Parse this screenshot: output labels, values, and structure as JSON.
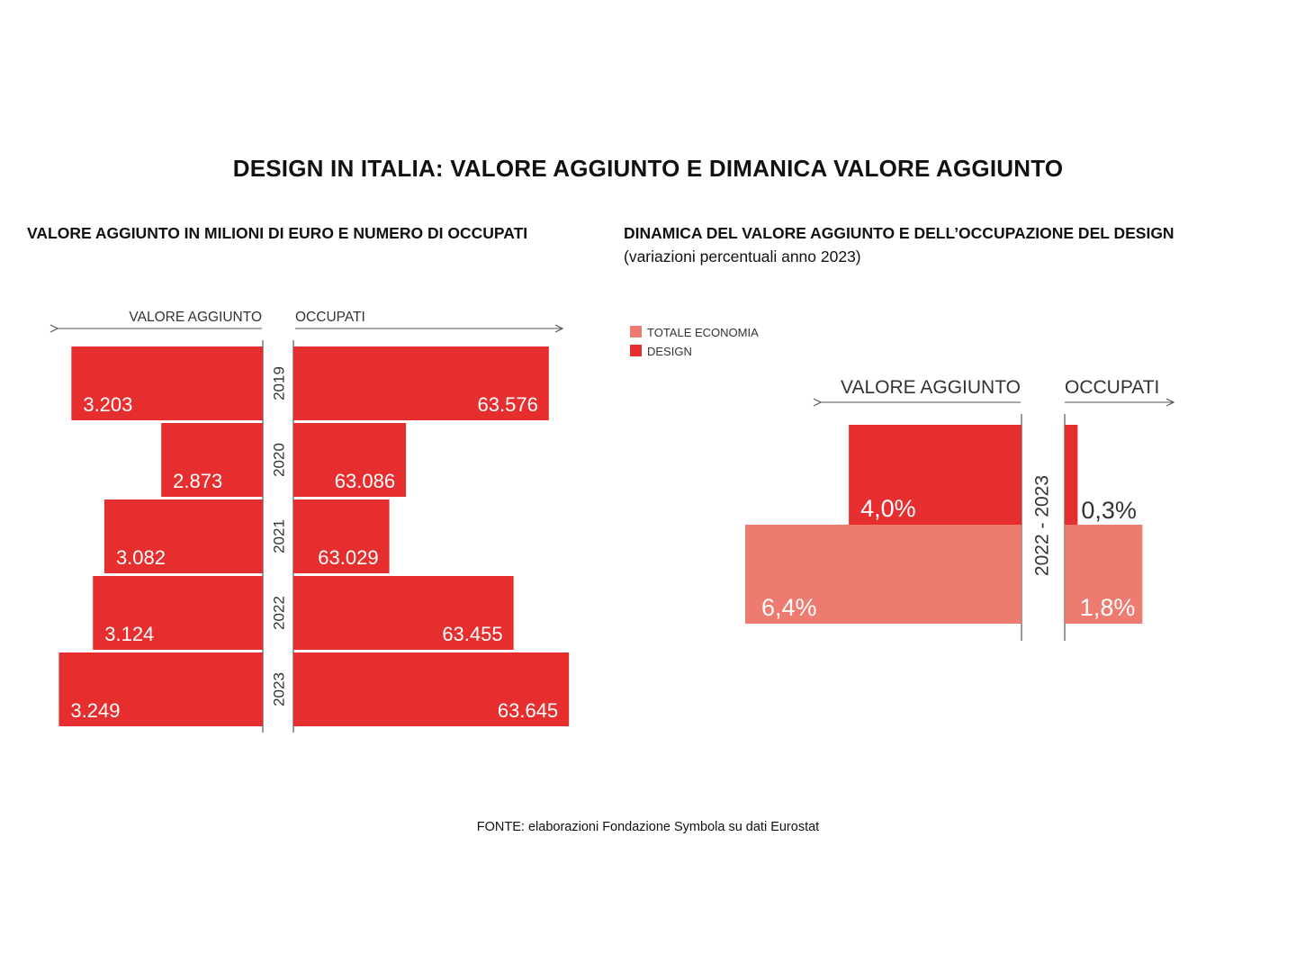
{
  "title": "DESIGN IN ITALIA: VALORE AGGIUNTO E DIMANICA VALORE AGGIUNTO",
  "left_subtitle": "VALORE AGGIUNTO IN MILIONI DI EURO E NUMERO DI OCCUPATI",
  "right_subtitle": "DINAMICA DEL VALORE AGGIUNTO E DELL’OCCUPAZIONE DEL DESIGN",
  "right_subtitle_note": "(variazioni percentuali anno 2023)",
  "source": "FONTE: elaborazioni Fondazione Symbola su dati Eurostat",
  "colors": {
    "design": "#e62e2e",
    "totale": "#ee7b70",
    "axis": "#555555"
  },
  "chart_data": [
    {
      "type": "bar",
      "orientation": "horizontal-butterfly",
      "left_axis_label": "VALORE AGGIUNTO",
      "right_axis_label": "OCCUPATI",
      "categories": [
        "2019",
        "2020",
        "2021",
        "2022",
        "2023"
      ],
      "series": [
        {
          "name": "VALORE AGGIUNTO",
          "values": [
            3203,
            2873,
            3082,
            3124,
            3249
          ],
          "labels": [
            "3.203",
            "2.873",
            "3.082",
            "3.124",
            "3.249"
          ]
        },
        {
          "name": "OCCUPATI",
          "values": [
            63576,
            63086,
            63029,
            63455,
            63645
          ],
          "labels": [
            "63.576",
            "63.086",
            "63.029",
            "63.455",
            "63.645"
          ]
        }
      ],
      "left_scale": [
        2500,
        3300
      ],
      "right_scale": [
        62700,
        63700
      ]
    },
    {
      "type": "bar",
      "orientation": "horizontal-butterfly",
      "period": "2022 - 2023",
      "left_axis_label": "VALORE AGGIUNTO",
      "right_axis_label": "OCCUPATI",
      "legend": [
        "TOTALE ECONOMIA",
        "DESIGN"
      ],
      "legend_position": "top-left",
      "series": [
        {
          "name": "DESIGN",
          "values": {
            "valore_aggiunto": 4.0,
            "occupati": 0.3
          },
          "labels": {
            "valore_aggiunto": "4,0%",
            "occupati": "0,3%"
          }
        },
        {
          "name": "TOTALE ECONOMIA",
          "values": {
            "valore_aggiunto": 6.4,
            "occupati": 1.8
          },
          "labels": {
            "valore_aggiunto": "6,4%",
            "occupati": "1,8%"
          }
        }
      ],
      "max": 6.4
    }
  ]
}
